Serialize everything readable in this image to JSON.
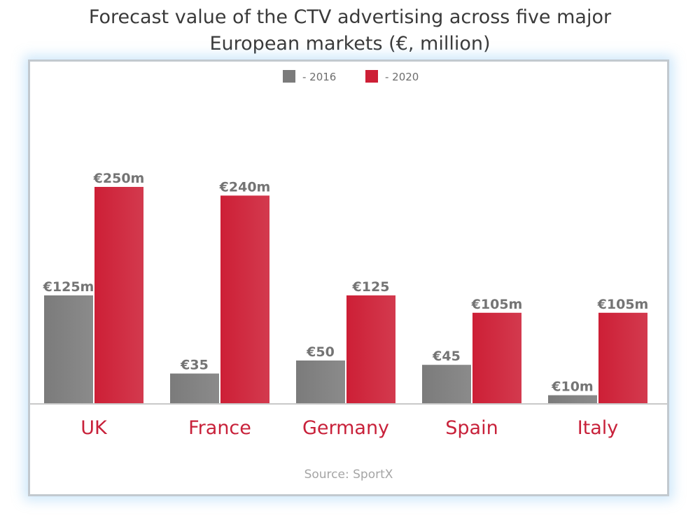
{
  "title_line1": "Forecast value of the CTV advertising across five major",
  "title_line2": "European markets (€, million)",
  "source": "Source: SportX",
  "colors": {
    "series_2016": "#7b7b7b",
    "series_2020": "#cd1f36",
    "category_label": "#c8213a",
    "value_label": "#747474"
  },
  "chart_data": {
    "type": "bar",
    "categories": [
      "UK",
      "France",
      "Germany",
      "Spain",
      "Italy"
    ],
    "series": [
      {
        "name": "- 2016",
        "values": [
          125,
          35,
          50,
          45,
          10
        ],
        "labels": [
          "€125m",
          "€35",
          "€50",
          "€45",
          "€10m"
        ]
      },
      {
        "name": "- 2020",
        "values": [
          250,
          240,
          125,
          105,
          105
        ],
        "labels": [
          "€250m",
          "€240m",
          "€125",
          "€105m",
          "€105m"
        ]
      }
    ],
    "ylim": [
      0,
      300
    ],
    "legend": "top-center",
    "grid": false
  }
}
